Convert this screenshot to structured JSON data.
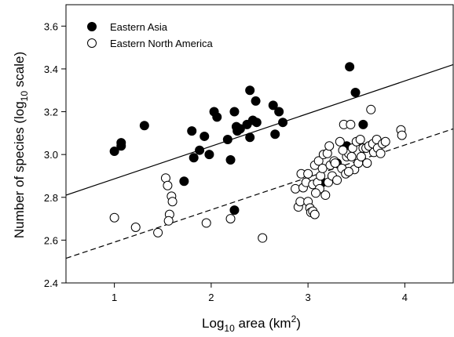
{
  "chart_data": {
    "type": "scatter",
    "title": "",
    "xlabel": {
      "base": "Log",
      "sub": "10",
      "mid": " area (km",
      "sup": "2",
      "end": ")"
    },
    "ylabel": {
      "pre": "Number of species (log",
      "sub": "10",
      "end": " scale)"
    },
    "xlim": [
      0.5,
      4.5
    ],
    "ylim": [
      2.4,
      3.7
    ],
    "x_ticks": [
      1,
      2,
      3,
      4
    ],
    "x_tick_labels": [
      "1",
      "2",
      "3",
      "4"
    ],
    "y_ticks": [
      2.4,
      2.6,
      2.8,
      3.0,
      3.2,
      3.4,
      3.6
    ],
    "y_tick_labels": [
      "2.4",
      "2.6",
      "2.8",
      "3.0",
      "3.2",
      "3.4",
      "3.6"
    ],
    "grid": false,
    "legend_position": "top-left",
    "series": [
      {
        "name": "Eastern Asia",
        "marker": "filled-circle",
        "color": "#000000",
        "points": [
          [
            1.0,
            3.015
          ],
          [
            1.07,
            3.04
          ],
          [
            1.07,
            3.055
          ],
          [
            1.31,
            3.135
          ],
          [
            1.72,
            2.875
          ],
          [
            1.8,
            3.11
          ],
          [
            1.82,
            2.985
          ],
          [
            1.88,
            3.02
          ],
          [
            1.93,
            3.085
          ],
          [
            1.98,
            3.0
          ],
          [
            2.03,
            3.2
          ],
          [
            2.06,
            3.175
          ],
          [
            2.17,
            3.07
          ],
          [
            2.2,
            2.975
          ],
          [
            2.24,
            3.2
          ],
          [
            2.26,
            3.13
          ],
          [
            2.27,
            3.11
          ],
          [
            2.3,
            3.12
          ],
          [
            2.24,
            2.74
          ],
          [
            2.37,
            3.14
          ],
          [
            2.4,
            3.08
          ],
          [
            2.4,
            3.3
          ],
          [
            2.43,
            3.16
          ],
          [
            2.46,
            3.25
          ],
          [
            2.47,
            3.15
          ],
          [
            2.64,
            3.23
          ],
          [
            2.66,
            3.095
          ],
          [
            2.7,
            3.2
          ],
          [
            2.74,
            3.15
          ],
          [
            3.43,
            3.41
          ],
          [
            3.49,
            3.29
          ],
          [
            3.57,
            3.14
          ],
          [
            3.4,
            3.04
          ],
          [
            3.15,
            2.87
          ],
          [
            3.3,
            2.96
          ]
        ]
      },
      {
        "name": "Eastern North America",
        "marker": "open-circle",
        "color": "#000000",
        "points": [
          [
            1.0,
            2.705
          ],
          [
            1.22,
            2.66
          ],
          [
            1.45,
            2.635
          ],
          [
            1.53,
            2.89
          ],
          [
            1.55,
            2.855
          ],
          [
            1.57,
            2.72
          ],
          [
            1.59,
            2.805
          ],
          [
            1.6,
            2.78
          ],
          [
            1.56,
            2.69
          ],
          [
            1.95,
            2.68
          ],
          [
            2.2,
            2.7
          ],
          [
            2.53,
            2.61
          ],
          [
            2.87,
            2.84
          ],
          [
            2.9,
            2.755
          ],
          [
            2.92,
            2.78
          ],
          [
            2.95,
            2.845
          ],
          [
            2.93,
            2.91
          ],
          [
            2.98,
            2.87
          ],
          [
            3.0,
            2.78
          ],
          [
            3.02,
            2.75
          ],
          [
            3.03,
            2.73
          ],
          [
            3.05,
            2.735
          ],
          [
            3.07,
            2.72
          ],
          [
            3.05,
            2.86
          ],
          [
            3.07,
            2.95
          ],
          [
            3.1,
            2.87
          ],
          [
            3.11,
            2.97
          ],
          [
            3.13,
            2.9
          ],
          [
            3.15,
            2.935
          ],
          [
            3.16,
            3.0
          ],
          [
            3.2,
            3.005
          ],
          [
            3.21,
            2.87
          ],
          [
            3.23,
            2.95
          ],
          [
            3.25,
            2.9
          ],
          [
            3.27,
            2.97
          ],
          [
            3.3,
            2.88
          ],
          [
            3.33,
            3.06
          ],
          [
            3.35,
            2.935
          ],
          [
            3.37,
            3.14
          ],
          [
            3.4,
            2.99
          ],
          [
            3.42,
            3.005
          ],
          [
            3.44,
            3.14
          ],
          [
            3.46,
            3.03
          ],
          [
            3.48,
            2.93
          ],
          [
            3.5,
            3.06
          ],
          [
            3.52,
            2.96
          ],
          [
            3.54,
            3.07
          ],
          [
            3.57,
            3.03
          ],
          [
            3.6,
            3.03
          ],
          [
            3.61,
            2.96
          ],
          [
            3.63,
            3.04
          ],
          [
            3.65,
            3.21
          ],
          [
            3.67,
            3.05
          ],
          [
            3.68,
            3.01
          ],
          [
            3.71,
            3.07
          ],
          [
            3.72,
            3.03
          ],
          [
            3.75,
            3.005
          ],
          [
            3.77,
            3.05
          ],
          [
            3.8,
            3.06
          ],
          [
            3.96,
            3.115
          ],
          [
            3.97,
            3.09
          ],
          [
            3.12,
            2.84
          ],
          [
            3.18,
            2.81
          ],
          [
            3.28,
            2.96
          ],
          [
            3.39,
            2.91
          ],
          [
            3.45,
            2.99
          ],
          [
            3.55,
            2.99
          ],
          [
            3.36,
            3.02
          ],
          [
            3.42,
            2.92
          ],
          [
            3.0,
            2.91
          ],
          [
            3.08,
            2.82
          ],
          [
            3.22,
            3.04
          ]
        ]
      }
    ],
    "fit_lines": [
      {
        "series": "Eastern Asia",
        "style": "solid",
        "x": [
          0.5,
          4.5
        ],
        "y": [
          2.81,
          3.42
        ]
      },
      {
        "series": "Eastern North America",
        "style": "dashed",
        "x": [
          0.5,
          4.5
        ],
        "y": [
          2.515,
          3.12
        ]
      }
    ]
  }
}
